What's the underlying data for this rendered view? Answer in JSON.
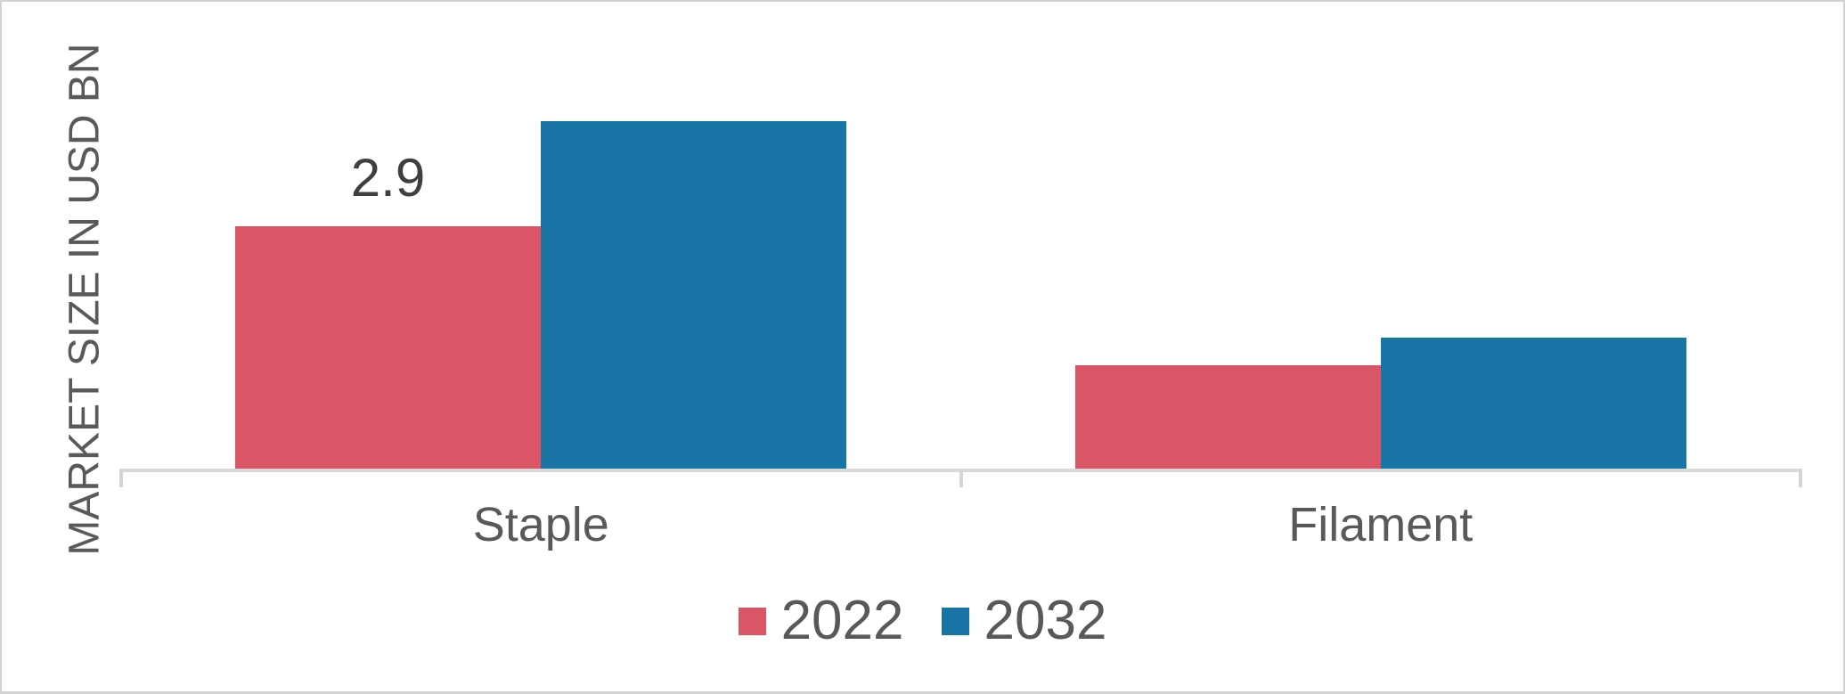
{
  "chart_data": {
    "type": "bar",
    "title": "",
    "ylabel": "MARKET SIZE IN USD BN",
    "xlabel": "",
    "categories": [
      "Staple",
      "Filament"
    ],
    "series": [
      {
        "name": "2022",
        "color": "#da5667",
        "values": [
          2.9,
          1.25
        ],
        "data_labels": [
          "2.9",
          ""
        ]
      },
      {
        "name": "2032",
        "color": "#1875a6",
        "values": [
          4.14,
          1.58
        ],
        "data_labels": [
          "",
          ""
        ]
      }
    ],
    "ylim": [
      0,
      4.6
    ],
    "grid": false,
    "y_axis_ticks_visible": false,
    "legend_position": "bottom",
    "colors": {
      "axis_line": "#d9d9d9",
      "tick": "#d5d5d5",
      "axis_text": "#595959",
      "data_label_text": "#3f3f3f",
      "frame_border": "#d2d2d2",
      "background": "#ffffff"
    }
  }
}
